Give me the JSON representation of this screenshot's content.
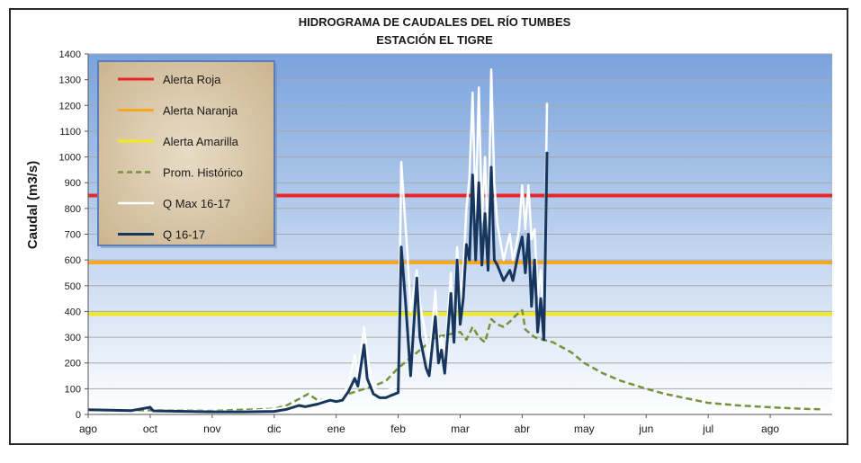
{
  "chart_data": {
    "type": "line",
    "title": "HIDROGRAMA DE CAUDALES  DEL RÍO TUMBES",
    "subtitle": "ESTACIÓN EL TIGRE",
    "ylabel": "Caudal  (m3/s)",
    "xlabel": "",
    "ylim": [
      0,
      1400
    ],
    "yticks": [
      0,
      100,
      200,
      300,
      400,
      500,
      600,
      700,
      800,
      900,
      1000,
      1100,
      1200,
      1300,
      1400
    ],
    "xlim": [
      0,
      12
    ],
    "xticks": [
      {
        "label": "ago",
        "x": 0
      },
      {
        "label": "oct",
        "x": 1
      },
      {
        "label": "nov",
        "x": 2
      },
      {
        "label": "dic",
        "x": 3
      },
      {
        "label": "ene",
        "x": 4
      },
      {
        "label": "feb",
        "x": 5
      },
      {
        "label": "mar",
        "x": 6
      },
      {
        "label": "abr",
        "x": 7
      },
      {
        "label": "may",
        "x": 8
      },
      {
        "label": "jun",
        "x": 9
      },
      {
        "label": "jul",
        "x": 10
      },
      {
        "label": "ago",
        "x": 11
      }
    ],
    "grid": true,
    "legend_position": "top-left",
    "thresholds": [
      {
        "name": "Alerta Roja",
        "value": 850,
        "color": "#e8262a"
      },
      {
        "name": "Alerta Naranja",
        "value": 590,
        "color": "#f5a623"
      },
      {
        "name": "Alerta Amarilla",
        "value": 390,
        "color": "#f2ea1d"
      }
    ],
    "series": [
      {
        "name": "Prom. Histórico",
        "color": "#76933c",
        "style": "dashed",
        "points": [
          [
            0,
            18
          ],
          [
            1,
            16
          ],
          [
            2,
            14
          ],
          [
            2.5,
            18
          ],
          [
            3,
            22
          ],
          [
            3.2,
            35
          ],
          [
            3.4,
            60
          ],
          [
            3.55,
            80
          ],
          [
            3.7,
            55
          ],
          [
            4,
            60
          ],
          [
            4.2,
            80
          ],
          [
            4.4,
            95
          ],
          [
            4.6,
            110
          ],
          [
            4.8,
            130
          ],
          [
            5,
            180
          ],
          [
            5.2,
            220
          ],
          [
            5.4,
            260
          ],
          [
            5.6,
            300
          ],
          [
            5.8,
            310
          ],
          [
            6,
            320
          ],
          [
            6.1,
            290
          ],
          [
            6.2,
            340
          ],
          [
            6.3,
            300
          ],
          [
            6.4,
            280
          ],
          [
            6.5,
            370
          ],
          [
            6.6,
            350
          ],
          [
            6.7,
            340
          ],
          [
            6.8,
            360
          ],
          [
            6.9,
            385
          ],
          [
            7,
            405
          ],
          [
            7.05,
            330
          ],
          [
            7.2,
            300
          ],
          [
            7.5,
            280
          ],
          [
            7.8,
            240
          ],
          [
            8,
            200
          ],
          [
            8.3,
            160
          ],
          [
            8.6,
            130
          ],
          [
            9,
            100
          ],
          [
            9.3,
            80
          ],
          [
            9.6,
            65
          ],
          [
            10,
            45
          ],
          [
            10.5,
            35
          ],
          [
            11,
            28
          ],
          [
            11.5,
            22
          ],
          [
            11.85,
            20
          ]
        ]
      },
      {
        "name": "Q Max 16-17",
        "color": "#ffffff",
        "style": "solid",
        "points": [
          [
            0,
            20
          ],
          [
            0.7,
            18
          ],
          [
            1,
            32
          ],
          [
            1.05,
            15
          ],
          [
            2,
            12
          ],
          [
            2.5,
            12
          ],
          [
            3,
            20
          ],
          [
            3.3,
            30
          ],
          [
            3.4,
            45
          ],
          [
            3.5,
            40
          ],
          [
            3.7,
            50
          ],
          [
            3.9,
            65
          ],
          [
            4,
            60
          ],
          [
            4.1,
            70
          ],
          [
            4.2,
            120
          ],
          [
            4.3,
            230
          ],
          [
            4.35,
            150
          ],
          [
            4.45,
            340
          ],
          [
            4.5,
            230
          ],
          [
            4.6,
            100
          ],
          [
            4.7,
            90
          ],
          [
            4.8,
            90
          ],
          [
            4.9,
            100
          ],
          [
            5,
            110
          ],
          [
            5.05,
            980
          ],
          [
            5.15,
            620
          ],
          [
            5.2,
            400
          ],
          [
            5.3,
            560
          ],
          [
            5.35,
            430
          ],
          [
            5.45,
            300
          ],
          [
            5.5,
            200
          ],
          [
            5.6,
            480
          ],
          [
            5.65,
            250
          ],
          [
            5.7,
            300
          ],
          [
            5.75,
            200
          ],
          [
            5.85,
            550
          ],
          [
            5.9,
            320
          ],
          [
            5.95,
            650
          ],
          [
            6,
            430
          ],
          [
            6.05,
            560
          ],
          [
            6.1,
            800
          ],
          [
            6.15,
            920
          ],
          [
            6.2,
            1250
          ],
          [
            6.25,
            760
          ],
          [
            6.3,
            1270
          ],
          [
            6.35,
            750
          ],
          [
            6.4,
            1000
          ],
          [
            6.45,
            650
          ],
          [
            6.5,
            1340
          ],
          [
            6.55,
            900
          ],
          [
            6.6,
            740
          ],
          [
            6.7,
            600
          ],
          [
            6.8,
            700
          ],
          [
            6.85,
            600
          ],
          [
            6.9,
            650
          ],
          [
            6.95,
            720
          ],
          [
            7,
            890
          ],
          [
            7.05,
            720
          ],
          [
            7.1,
            890
          ],
          [
            7.15,
            680
          ],
          [
            7.2,
            720
          ],
          [
            7.25,
            460
          ],
          [
            7.3,
            560
          ],
          [
            7.35,
            350
          ],
          [
            7.4,
            1210
          ]
        ]
      },
      {
        "name": "Q 16-17",
        "color": "#17365d",
        "style": "solid",
        "points": [
          [
            0,
            18
          ],
          [
            0.7,
            15
          ],
          [
            1,
            28
          ],
          [
            1.05,
            14
          ],
          [
            2,
            10
          ],
          [
            2.5,
            10
          ],
          [
            3,
            12
          ],
          [
            3.2,
            20
          ],
          [
            3.4,
            35
          ],
          [
            3.5,
            30
          ],
          [
            3.7,
            40
          ],
          [
            3.9,
            55
          ],
          [
            4,
            50
          ],
          [
            4.1,
            55
          ],
          [
            4.2,
            90
          ],
          [
            4.3,
            140
          ],
          [
            4.35,
            110
          ],
          [
            4.45,
            270
          ],
          [
            4.5,
            140
          ],
          [
            4.6,
            80
          ],
          [
            4.7,
            65
          ],
          [
            4.8,
            65
          ],
          [
            4.9,
            75
          ],
          [
            5,
            85
          ],
          [
            5.05,
            650
          ],
          [
            5.12,
            430
          ],
          [
            5.2,
            150
          ],
          [
            5.3,
            530
          ],
          [
            5.35,
            300
          ],
          [
            5.45,
            180
          ],
          [
            5.5,
            150
          ],
          [
            5.6,
            380
          ],
          [
            5.65,
            200
          ],
          [
            5.7,
            250
          ],
          [
            5.75,
            160
          ],
          [
            5.85,
            470
          ],
          [
            5.9,
            280
          ],
          [
            5.95,
            600
          ],
          [
            6,
            350
          ],
          [
            6.05,
            450
          ],
          [
            6.1,
            660
          ],
          [
            6.15,
            600
          ],
          [
            6.2,
            930
          ],
          [
            6.25,
            600
          ],
          [
            6.3,
            900
          ],
          [
            6.35,
            580
          ],
          [
            6.4,
            780
          ],
          [
            6.45,
            560
          ],
          [
            6.5,
            960
          ],
          [
            6.55,
            600
          ],
          [
            6.6,
            580
          ],
          [
            6.7,
            520
          ],
          [
            6.8,
            560
          ],
          [
            6.85,
            520
          ],
          [
            6.9,
            580
          ],
          [
            6.95,
            640
          ],
          [
            7,
            690
          ],
          [
            7.05,
            550
          ],
          [
            7.1,
            700
          ],
          [
            7.15,
            420
          ],
          [
            7.2,
            600
          ],
          [
            7.25,
            320
          ],
          [
            7.3,
            450
          ],
          [
            7.35,
            290
          ],
          [
            7.4,
            1020
          ]
        ]
      }
    ]
  }
}
